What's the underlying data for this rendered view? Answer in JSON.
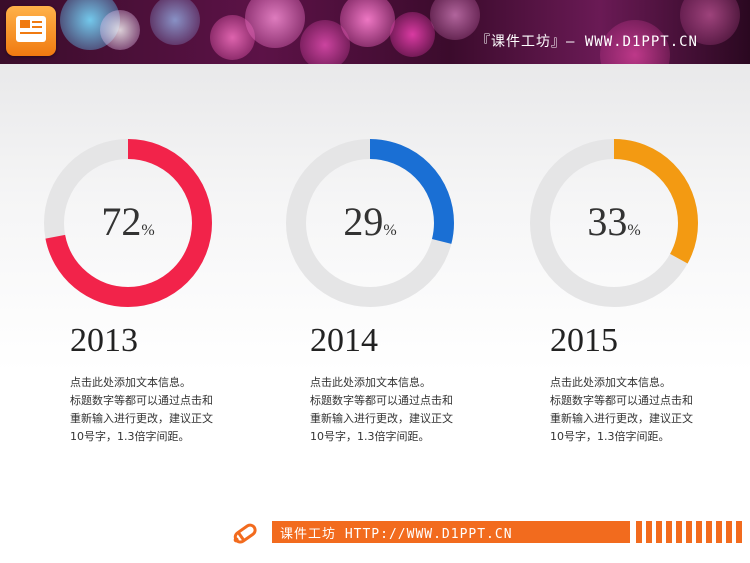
{
  "header": {
    "title": "『课件工坊』— WWW.D1PPT.CN"
  },
  "stats": [
    {
      "value": "72",
      "unit": "%",
      "percent": 72,
      "year": "2013",
      "color": "#f2234a",
      "desc_lines": [
        "点击此处添加文本信息。",
        "标题数字等都可以通过点击和",
        "重新输入进行更改，建议正文",
        "10号字，1.3倍字间距。"
      ]
    },
    {
      "value": "29",
      "unit": "%",
      "percent": 29,
      "year": "2014",
      "color": "#1a6fd4",
      "desc_lines": [
        "点击此处添加文本信息。",
        "标题数字等都可以通过点击和",
        "重新输入进行更改，建议正文",
        "10号字，1.3倍字间距。"
      ]
    },
    {
      "value": "33",
      "unit": "%",
      "percent": 33,
      "year": "2015",
      "color": "#f39a12",
      "desc_lines": [
        "点击此处添加文本信息。",
        "标题数字等都可以通过点击和",
        "重新输入进行更改，建议正文",
        "10号字，1.3倍字间距。"
      ]
    }
  ],
  "track_color": "#e5e5e6",
  "accent_color": "#f26b1e",
  "footer": {
    "text": "课件工坊 HTTP://WWW.D1PPT.CN"
  }
}
